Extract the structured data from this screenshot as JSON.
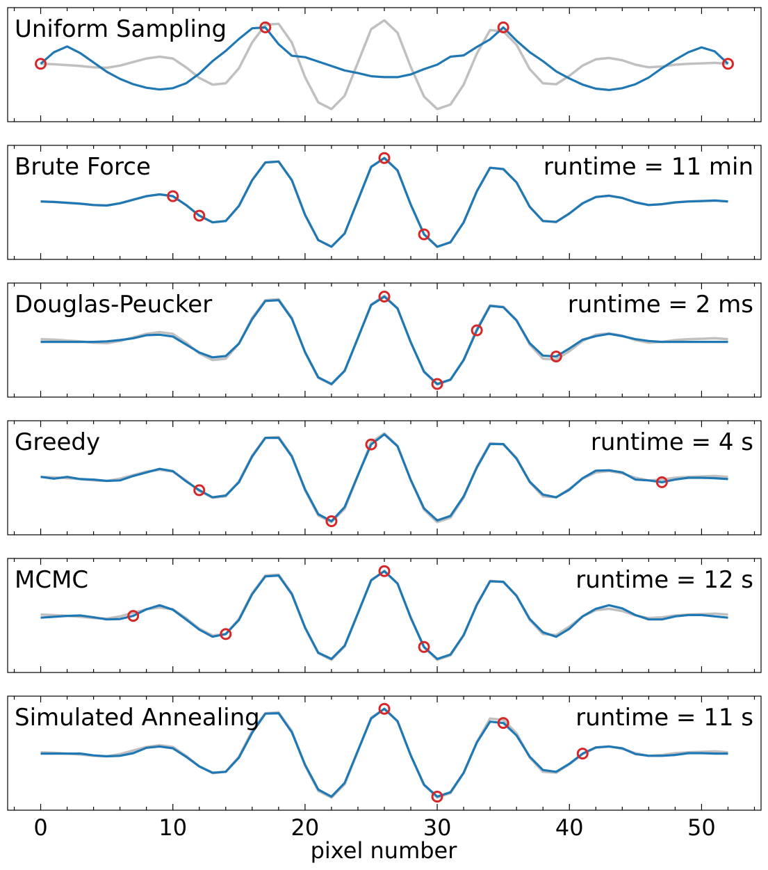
{
  "chart_data": {
    "type": "line",
    "xlabel": "pixel number",
    "xlim": [
      -2.5,
      54.5
    ],
    "ylim": [
      -1.05,
      1.05
    ],
    "x_ticks": [
      0,
      10,
      20,
      30,
      40,
      50
    ],
    "x_tick_labels": [
      "0",
      "10",
      "20",
      "30",
      "40",
      "50"
    ],
    "x_minor_step": 2,
    "colors": {
      "reference": "#c0c0c0",
      "approximation": "#1f77b4",
      "control_points": "#d62728"
    },
    "reference": {
      "x": [
        0,
        1,
        2,
        3,
        4,
        5,
        6,
        7,
        8,
        9,
        10,
        11,
        12,
        13,
        14,
        15,
        16,
        17,
        18,
        19,
        20,
        21,
        22,
        23,
        24,
        25,
        26,
        27,
        28,
        29,
        30,
        31,
        32,
        33,
        34,
        35,
        36,
        37,
        38,
        39,
        40,
        41,
        42,
        43,
        44,
        45,
        46,
        47,
        48,
        49,
        50,
        51,
        52
      ],
      "y": [
        0.02,
        0.01,
        -0.01,
        -0.03,
        -0.06,
        -0.07,
        -0.02,
        0.06,
        0.14,
        0.18,
        0.14,
        -0.06,
        -0.3,
        -0.45,
        -0.42,
        -0.08,
        0.5,
        0.9,
        0.92,
        0.5,
        -0.28,
        -0.85,
        -1.0,
        -0.7,
        0.05,
        0.8,
        1.0,
        0.72,
        -0.05,
        -0.72,
        -1.0,
        -0.9,
        -0.45,
        0.25,
        0.78,
        0.75,
        0.45,
        -0.1,
        -0.42,
        -0.44,
        -0.25,
        -0.02,
        0.12,
        0.15,
        0.1,
        0.0,
        -0.06,
        -0.04,
        0.0,
        0.02,
        0.03,
        0.04,
        0.02
      ]
    },
    "panels": [
      {
        "title": "Uniform Sampling",
        "runtime": "",
        "points": [
          0,
          17,
          35,
          52
        ],
        "curve": [
          0.02,
          0.28,
          0.41,
          0.26,
          0.05,
          -0.16,
          -0.32,
          -0.44,
          -0.52,
          -0.56,
          -0.53,
          -0.42,
          -0.2,
          0.08,
          0.31,
          0.58,
          0.82,
          0.84,
          0.46,
          0.2,
          0.17,
          0.07,
          -0.03,
          -0.13,
          -0.19,
          -0.26,
          -0.28,
          -0.28,
          -0.22,
          -0.1,
          0.0,
          0.18,
          0.21,
          0.4,
          0.57,
          0.84,
          0.54,
          0.28,
          0.08,
          -0.15,
          -0.31,
          -0.45,
          -0.54,
          -0.57,
          -0.53,
          -0.44,
          -0.29,
          -0.08,
          0.11,
          0.28,
          0.39,
          0.3,
          0.02
        ]
      },
      {
        "title": "Brute Force",
        "runtime": "runtime = 11 min",
        "points": [
          10,
          12,
          26,
          29
        ],
        "curve": [
          0.02,
          0.01,
          -0.01,
          -0.03,
          -0.06,
          -0.07,
          -0.02,
          0.06,
          0.14,
          0.18,
          0.14,
          -0.06,
          -0.3,
          -0.45,
          -0.42,
          -0.08,
          0.5,
          0.9,
          0.92,
          0.5,
          -0.28,
          -0.85,
          -1.0,
          -0.7,
          0.05,
          0.8,
          1.0,
          0.72,
          -0.05,
          -0.72,
          -1.0,
          -0.9,
          -0.45,
          0.25,
          0.78,
          0.75,
          0.45,
          -0.1,
          -0.42,
          -0.44,
          -0.25,
          -0.02,
          0.12,
          0.15,
          0.1,
          0.0,
          -0.06,
          -0.04,
          0.0,
          0.02,
          0.03,
          0.04,
          0.02
        ]
      },
      {
        "title": "Douglas-Peucker",
        "runtime": "runtime = 2 ms",
        "points": [
          26,
          30,
          33,
          39
        ],
        "curve": [
          -0.04,
          -0.04,
          -0.04,
          -0.04,
          -0.04,
          -0.03,
          0.0,
          0.04,
          0.11,
          0.12,
          0.08,
          -0.1,
          -0.28,
          -0.39,
          -0.36,
          -0.08,
          0.47,
          0.88,
          0.9,
          0.48,
          -0.27,
          -0.84,
          -0.99,
          -0.69,
          0.05,
          0.79,
          0.98,
          0.71,
          -0.05,
          -0.71,
          -0.99,
          -0.89,
          -0.45,
          0.22,
          0.77,
          0.74,
          0.44,
          -0.07,
          -0.35,
          -0.37,
          -0.19,
          0.01,
          0.09,
          0.14,
          0.09,
          0.02,
          -0.02,
          -0.04,
          -0.04,
          -0.04,
          -0.04,
          -0.04,
          -0.04
        ]
      },
      {
        "title": "Greedy",
        "runtime": "runtime = 4 s",
        "points": [
          12,
          22,
          25,
          47
        ],
        "curve": [
          0.02,
          -0.02,
          0.02,
          -0.03,
          -0.04,
          -0.07,
          -0.06,
          0.04,
          0.12,
          0.2,
          0.15,
          -0.08,
          -0.28,
          -0.44,
          -0.4,
          -0.1,
          0.48,
          0.9,
          0.9,
          0.48,
          -0.26,
          -0.82,
          -0.98,
          -0.66,
          0.06,
          0.75,
          0.98,
          0.71,
          -0.05,
          -0.69,
          -0.96,
          -0.86,
          -0.42,
          0.23,
          0.76,
          0.76,
          0.43,
          -0.09,
          -0.38,
          -0.44,
          -0.27,
          -0.01,
          0.16,
          0.17,
          0.12,
          -0.04,
          -0.06,
          -0.1,
          -0.04,
          0.0,
          0.0,
          -0.01,
          -0.03
        ]
      },
      {
        "title": "MCMC",
        "runtime": "runtime = 12 s",
        "points": [
          7,
          14,
          26,
          29
        ],
        "curve": [
          -0.05,
          -0.03,
          -0.01,
          0.0,
          -0.04,
          -0.09,
          -0.08,
          -0.01,
          0.14,
          0.23,
          0.13,
          -0.09,
          -0.32,
          -0.48,
          -0.42,
          -0.1,
          0.48,
          0.88,
          0.9,
          0.48,
          -0.27,
          -0.84,
          -0.98,
          -0.68,
          0.05,
          0.79,
          1.0,
          0.72,
          -0.05,
          -0.71,
          -0.98,
          -0.88,
          -0.44,
          0.24,
          0.77,
          0.76,
          0.44,
          -0.08,
          -0.38,
          -0.48,
          -0.3,
          -0.02,
          0.15,
          0.23,
          0.16,
          0.01,
          -0.09,
          -0.09,
          -0.02,
          0.01,
          0.01,
          -0.02,
          -0.05
        ]
      },
      {
        "title": "Simulated Annealing",
        "runtime": "runtime = 11 s",
        "points": [
          26,
          30,
          35,
          41
        ],
        "curve": [
          -0.01,
          -0.01,
          -0.01,
          -0.01,
          -0.05,
          -0.07,
          -0.06,
          0.0,
          0.12,
          0.15,
          0.11,
          -0.08,
          -0.3,
          -0.44,
          -0.42,
          -0.1,
          0.46,
          0.89,
          0.9,
          0.47,
          -0.26,
          -0.82,
          -0.98,
          -0.67,
          0.06,
          0.78,
          1.0,
          0.72,
          -0.05,
          -0.71,
          -0.98,
          -0.88,
          -0.44,
          0.24,
          0.71,
          0.68,
          0.4,
          -0.08,
          -0.38,
          -0.42,
          -0.24,
          -0.01,
          0.13,
          0.15,
          0.11,
          -0.02,
          -0.06,
          -0.06,
          -0.04,
          0.0,
          0.0,
          -0.01,
          -0.01
        ]
      }
    ]
  }
}
